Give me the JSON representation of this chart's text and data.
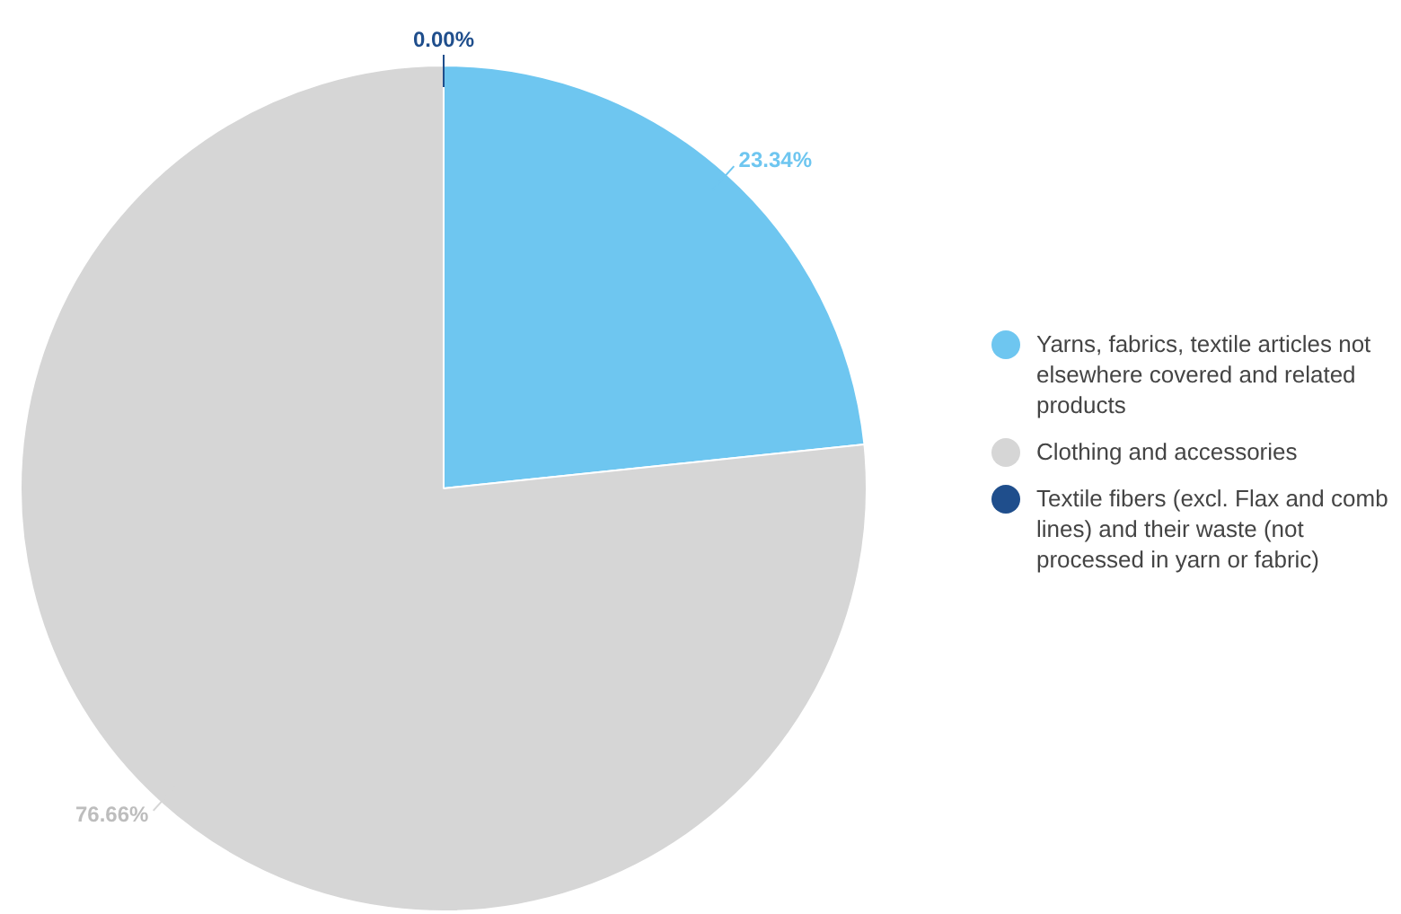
{
  "chart_data": {
    "type": "pie",
    "categories": [
      "Yarns, fabrics, textile articles not elsewhere covered and related products",
      "Clothing and accessories",
      "Textile fibers (excl. Flax and comb lines) and their waste (not processed in yarn or fabric)"
    ],
    "values": [
      23.34,
      76.66,
      0.0
    ],
    "colors": [
      "#6ec6f0",
      "#d6d6d6",
      "#1f4e8c"
    ],
    "value_labels": [
      "23.34%",
      "76.66%",
      "0.00%"
    ],
    "legend": "right"
  }
}
